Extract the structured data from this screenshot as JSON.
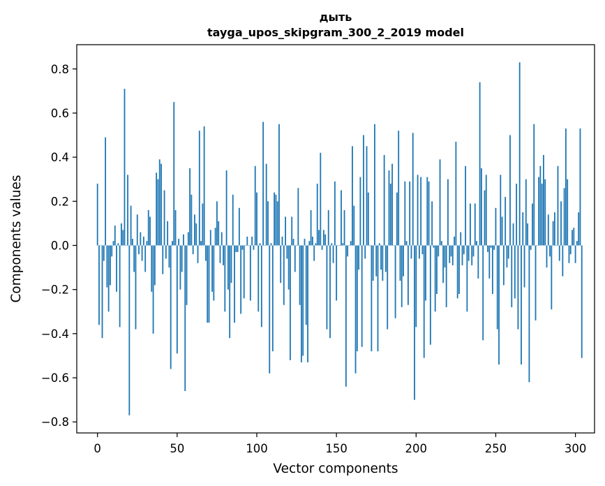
{
  "chart_data": {
    "type": "bar",
    "title": "дыть",
    "subtitle": "tayga_upos_skipgram_300_2_2019 model",
    "xlabel": "Vector components",
    "ylabel": "Components values",
    "xlim": [
      -13,
      312
    ],
    "ylim": [
      -0.85,
      0.91
    ],
    "xticks": [
      0,
      50,
      100,
      150,
      200,
      250,
      300
    ],
    "yticks": [
      -0.8,
      -0.6,
      -0.4,
      -0.2,
      0.0,
      0.2,
      0.4,
      0.6,
      0.8
    ],
    "grid": false,
    "bar_color": "#1f77b4",
    "values": [
      0.28,
      -0.36,
      0.0,
      -0.42,
      -0.07,
      0.49,
      -0.19,
      -0.3,
      -0.18,
      -0.05,
      0.02,
      0.09,
      -0.21,
      0.01,
      -0.37,
      0.1,
      0.07,
      0.71,
      0.0,
      0.32,
      -0.77,
      0.18,
      0.03,
      -0.12,
      -0.38,
      0.14,
      -0.04,
      0.06,
      -0.07,
      0.04,
      -0.12,
      0.02,
      0.16,
      0.13,
      -0.21,
      -0.4,
      -0.18,
      0.33,
      0.3,
      0.39,
      0.37,
      -0.13,
      0.25,
      -0.06,
      0.11,
      -0.1,
      -0.56,
      0.02,
      0.65,
      0.16,
      -0.49,
      0.03,
      -0.2,
      -0.12,
      0.05,
      -0.66,
      -0.27,
      0.06,
      0.35,
      0.23,
      -0.04,
      0.14,
      0.1,
      -0.08,
      0.52,
      0.02,
      0.19,
      0.54,
      -0.07,
      -0.35,
      -0.35,
      0.07,
      -0.21,
      -0.25,
      0.08,
      0.2,
      0.11,
      -0.08,
      0.06,
      -0.09,
      -0.3,
      0.34,
      -0.2,
      -0.42,
      -0.17,
      0.23,
      -0.35,
      -0.03,
      -0.03,
      0.17,
      -0.31,
      -0.02,
      -0.24,
      0.0,
      0.04,
      0.0,
      -0.25,
      0.04,
      -0.02,
      0.36,
      0.24,
      -0.3,
      0.01,
      -0.37,
      0.56,
      0.0,
      0.37,
      0.2,
      -0.58,
      0.01,
      -0.48,
      0.24,
      0.23,
      0.2,
      0.55,
      -0.17,
      0.04,
      -0.27,
      0.13,
      -0.06,
      -0.2,
      -0.52,
      0.13,
      0.03,
      -0.12,
      0.0,
      0.26,
      -0.27,
      -0.53,
      -0.5,
      0.03,
      -0.36,
      -0.53,
      0.02,
      0.16,
      0.04,
      -0.07,
      0.01,
      0.28,
      0.07,
      0.42,
      -0.02,
      0.07,
      0.05,
      -0.38,
      0.16,
      -0.42,
      0.01,
      -0.08,
      0.29,
      -0.25,
      0.0,
      0.0,
      0.25,
      0.01,
      0.16,
      -0.64,
      -0.05,
      0.0,
      0.02,
      0.45,
      0.18,
      -0.58,
      -0.48,
      -0.11,
      0.31,
      -0.46,
      0.5,
      -0.06,
      0.45,
      0.24,
      0.0,
      -0.48,
      -0.16,
      0.55,
      -0.14,
      -0.48,
      0.01,
      -0.11,
      -0.16,
      0.41,
      -0.12,
      -0.38,
      0.34,
      0.28,
      0.37,
      0.0,
      -0.33,
      0.24,
      0.52,
      -0.16,
      -0.28,
      -0.14,
      0.29,
      0.02,
      -0.27,
      0.29,
      -0.06,
      0.51,
      -0.7,
      -0.37,
      0.32,
      -0.06,
      0.31,
      -0.04,
      -0.51,
      -0.25,
      0.31,
      0.29,
      -0.45,
      0.2,
      -0.01,
      -0.3,
      -0.22,
      -0.05,
      0.39,
      0.02,
      -0.17,
      -0.1,
      -0.28,
      0.3,
      -0.08,
      -0.05,
      -0.09,
      0.04,
      0.47,
      -0.24,
      -0.22,
      0.06,
      -0.09,
      -0.04,
      0.36,
      -0.3,
      -0.07,
      0.19,
      -0.09,
      -0.05,
      0.19,
      0.02,
      -0.15,
      0.74,
      0.35,
      -0.43,
      0.25,
      0.32,
      -0.03,
      -0.15,
      -0.01,
      -0.22,
      -0.02,
      0.17,
      -0.38,
      -0.54,
      0.32,
      0.13,
      -0.18,
      0.22,
      -0.1,
      -0.06,
      0.5,
      -0.28,
      0.1,
      -0.24,
      0.28,
      -0.38,
      0.83,
      -0.54,
      0.15,
      -0.19,
      0.3,
      0.1,
      -0.62,
      -0.02,
      0.19,
      0.55,
      -0.34,
      0.0,
      0.31,
      0.36,
      0.28,
      0.41,
      0.3,
      -0.1,
      0.14,
      -0.05,
      -0.29,
      0.11,
      0.15,
      0.0,
      0.36,
      -0.07,
      0.2,
      -0.14,
      0.26,
      0.53,
      0.3,
      -0.08,
      -0.04,
      0.07,
      0.08,
      -0.08,
      0.02,
      0.15,
      0.53,
      -0.51
    ]
  }
}
